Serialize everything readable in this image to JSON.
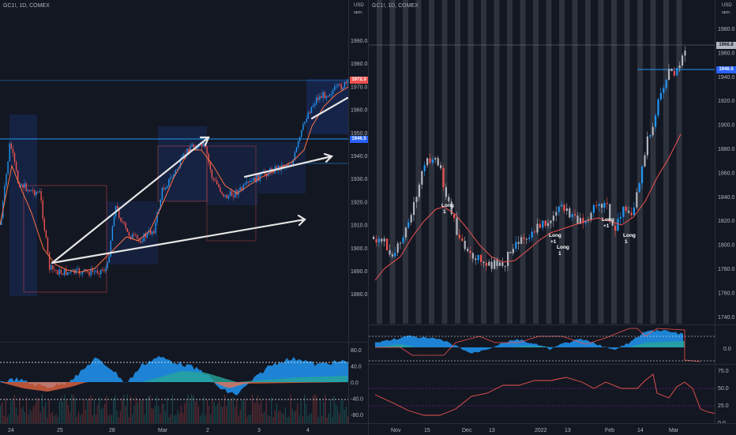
{
  "left_chart": {
    "symbol": "GC1!, 1D, COMEX",
    "price_axis": [
      "1990.0",
      "1980.0",
      "1970.0",
      "1960.0",
      "1950.0",
      "1940.0",
      "1930.0",
      "1920.0",
      "1910.0",
      "1900.0",
      "1890.0",
      "1880.0"
    ],
    "price_label_1": "1972.3",
    "price_label_2": "1946.5",
    "osc_axis": [
      "80.0",
      "40.0",
      "0.0",
      "-40.0",
      "-80.0"
    ],
    "time_axis": [
      "24",
      "25",
      "28",
      "Mar",
      "2",
      "3",
      "4"
    ],
    "colors": {
      "up": "#2196f3",
      "down": "#ef5350",
      "ma": "#ff7043",
      "box": "#2962ff",
      "arrow": "#ffffff"
    }
  },
  "right_chart": {
    "symbol": "GC1!, 1D, COMEX",
    "currency": "USD",
    "currency_sub": "apoc",
    "price_axis": [
      "1980.0",
      "1960.0",
      "1940.0",
      "1920.0",
      "1900.0",
      "1880.0",
      "1860.0",
      "1840.0",
      "1820.0",
      "1800.0",
      "1780.0",
      "1760.0",
      "1740.0"
    ],
    "price_label_1": "1966.8",
    "price_label_2": "1946.5",
    "osc1_axis": [
      "0.0"
    ],
    "osc2_axis": [
      "75.0",
      "50.0",
      "25.0",
      "0.0"
    ],
    "time_axis": [
      "Nov",
      "15",
      "Dec",
      "13",
      "2022",
      "13",
      "Feb",
      "14",
      "Mar"
    ],
    "signals": [
      "Long",
      "Long",
      "Long",
      "Long",
      "Long"
    ],
    "signal_vals": [
      "1",
      "+1",
      "1",
      "+1",
      "1"
    ]
  },
  "left_currency": {
    "currency": "USD",
    "currency_sub": "apoc"
  }
}
